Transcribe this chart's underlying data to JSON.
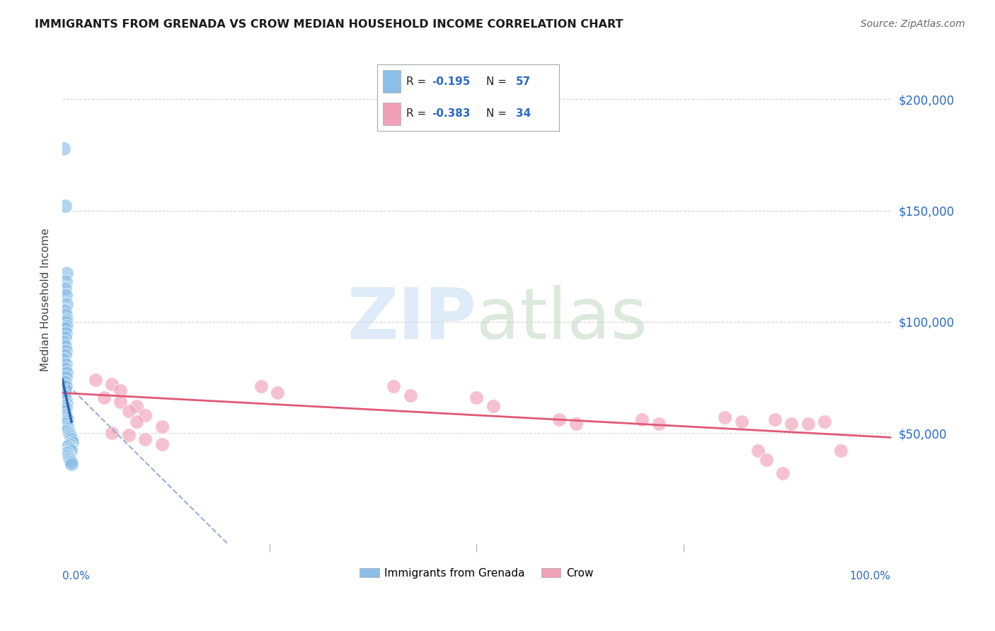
{
  "title": "IMMIGRANTS FROM GRENADA VS CROW MEDIAN HOUSEHOLD INCOME CORRELATION CHART",
  "source": "Source: ZipAtlas.com",
  "ylabel": "Median Household Income",
  "ylim": [
    0,
    220000
  ],
  "xlim": [
    0.0,
    1.0
  ],
  "legend_label1": "Immigrants from Grenada",
  "legend_label2": "Crow",
  "blue_color": "#8bbfe8",
  "pink_color": "#f0a0b8",
  "blue_line_color": "#3060b0",
  "blue_dash_color": "#8099cc",
  "pink_line_color": "#e05878",
  "background_color": "#ffffff",
  "grid_color": "#cccccc",
  "blue_scatter_x": [
    0.002,
    0.003,
    0.005,
    0.004,
    0.003,
    0.004,
    0.005,
    0.003,
    0.004,
    0.005,
    0.004,
    0.005,
    0.003,
    0.004,
    0.003,
    0.002,
    0.003,
    0.004,
    0.003,
    0.002,
    0.004,
    0.003,
    0.005,
    0.004,
    0.003,
    0.004,
    0.003,
    0.003,
    0.002,
    0.004,
    0.005,
    0.003,
    0.004,
    0.003,
    0.004,
    0.005,
    0.006,
    0.005,
    0.004,
    0.006,
    0.007,
    0.006,
    0.008,
    0.009,
    0.01,
    0.011,
    0.012,
    0.008,
    0.007,
    0.009,
    0.01,
    0.006,
    0.007,
    0.008,
    0.009,
    0.01,
    0.011
  ],
  "blue_scatter_y": [
    178000,
    152000,
    122000,
    118000,
    115000,
    112000,
    108000,
    105000,
    103000,
    101000,
    100000,
    98000,
    97000,
    95000,
    93000,
    91000,
    89000,
    87000,
    85000,
    83000,
    81000,
    79000,
    77000,
    75000,
    73000,
    71000,
    69000,
    68000,
    67000,
    65000,
    63000,
    62000,
    61000,
    60000,
    58000,
    57000,
    56000,
    55000,
    54000,
    53000,
    52000,
    51000,
    50000,
    49000,
    48000,
    47000,
    46000,
    45000,
    44000,
    43000,
    42000,
    41000,
    40000,
    39000,
    38000,
    37000,
    36000
  ],
  "pink_scatter_x": [
    0.04,
    0.06,
    0.07,
    0.05,
    0.07,
    0.09,
    0.08,
    0.1,
    0.09,
    0.12,
    0.06,
    0.08,
    0.1,
    0.12,
    0.24,
    0.26,
    0.4,
    0.42,
    0.5,
    0.52,
    0.6,
    0.62,
    0.7,
    0.72,
    0.8,
    0.82,
    0.84,
    0.86,
    0.88,
    0.9,
    0.92,
    0.94,
    0.85,
    0.87
  ],
  "pink_scatter_y": [
    74000,
    72000,
    69000,
    66000,
    64000,
    62000,
    60000,
    58000,
    55000,
    53000,
    50000,
    49000,
    47000,
    45000,
    71000,
    68000,
    71000,
    67000,
    66000,
    62000,
    56000,
    54000,
    56000,
    54000,
    57000,
    55000,
    42000,
    56000,
    54000,
    54000,
    55000,
    42000,
    38000,
    32000
  ],
  "ytick_vals": [
    50000,
    100000,
    150000,
    200000
  ],
  "ytick_labels": [
    "$50,000",
    "$100,000",
    "$150,000",
    "$200,000"
  ]
}
